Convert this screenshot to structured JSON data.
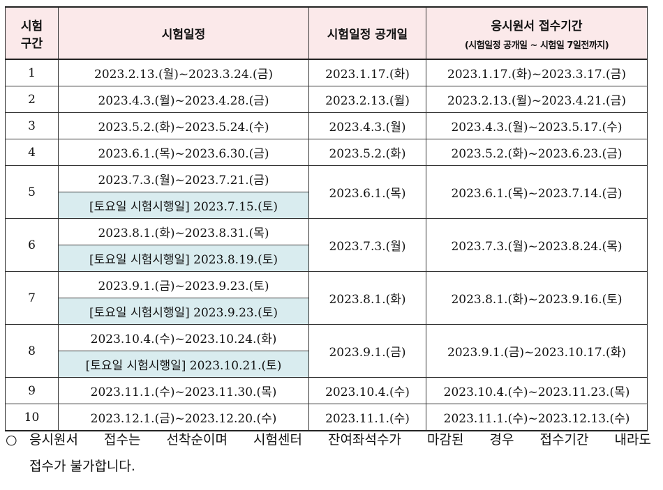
{
  "header": {
    "col1_line1": "시험",
    "col1_line2": "구간",
    "col2": "시험일정",
    "col3": "시험일정 공개일",
    "col4_main": "응시원서 접수기간",
    "col4_sub": "(시험일정 공개일 ~ 시험일 7일전까지)"
  },
  "rows": [
    {
      "no": "1",
      "schedule": "2023.2.13.(월)~2023.3.24.(금)",
      "release": "2023.1.17.(화)",
      "application": "2023.1.17.(화)~2023.3.17.(금)"
    },
    {
      "no": "2",
      "schedule": "2023.4.3.(월)~2023.4.28.(금)",
      "release": "2023.2.13.(월)",
      "application": "2023.2.13.(월)~2023.4.21.(금)"
    },
    {
      "no": "3",
      "schedule": "2023.5.2.(화)~2023.5.24.(수)",
      "release": "2023.4.3.(월)",
      "application": "2023.4.3.(월)~2023.5.17.(수)"
    },
    {
      "no": "4",
      "schedule": "2023.6.1.(목)~2023.6.30.(금)",
      "release": "2023.5.2.(화)",
      "application": "2023.5.2.(화)~2023.6.23.(금)"
    },
    {
      "no": "5",
      "schedule": "2023.7.3.(월)~2023.7.21.(금)",
      "saturday": "[토요일 시험시행일] 2023.7.15.(토)",
      "release": "2023.6.1.(목)",
      "application": "2023.6.1.(목)~2023.7.14.(금)"
    },
    {
      "no": "6",
      "schedule": "2023.8.1.(화)~2023.8.31.(목)",
      "saturday": "[토요일 시험시행일] 2023.8.19.(토)",
      "release": "2023.7.3.(월)",
      "application": "2023.7.3.(월)~2023.8.24.(목)"
    },
    {
      "no": "7",
      "schedule": "2023.9.1.(금)~2023.9.23.(토)",
      "saturday": "[토요일 시험시행일] 2023.9.23.(토)",
      "release": "2023.8.1.(화)",
      "application": "2023.8.1.(화)~2023.9.16.(토)"
    },
    {
      "no": "8",
      "schedule": "2023.10.4.(수)~2023.10.24.(화)",
      "saturday": "[토요일 시험시행일] 2023.10.21.(토)",
      "release": "2023.9.1.(금)",
      "application": "2023.9.1.(금)~2023.10.17.(화)"
    },
    {
      "no": "9",
      "schedule": "2023.11.1.(수)~2023.11.30.(목)",
      "release": "2023.10.4.(수)",
      "application": "2023.10.4.(수)~2023.11.23.(목)"
    },
    {
      "no": "10",
      "schedule": "2023.12.1.(금)~2023.12.20.(수)",
      "release": "2023.11.1.(수)",
      "application": "2023.11.1.(수)~2023.12.13.(수)"
    }
  ],
  "note": {
    "bullet": "○",
    "line1": "응시원서 접수는 선착순이며 시험센터 잔여좌석수가 마감된 경우 접수기간 내라도",
    "line2": "접수가 불가합니다."
  }
}
